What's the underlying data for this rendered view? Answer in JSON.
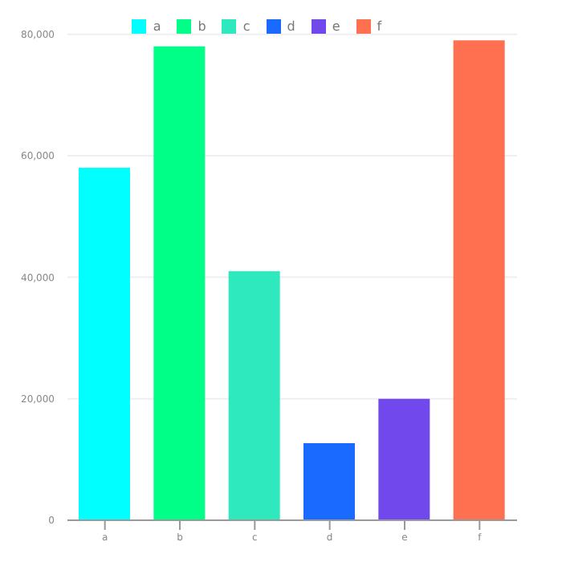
{
  "chart_data": {
    "type": "bar",
    "categories": [
      "a",
      "b",
      "c",
      "d",
      "e",
      "f"
    ],
    "stacked": true,
    "series": [
      {
        "name": "a",
        "color": "#00ffff",
        "values": [
          58000,
          null,
          null,
          null,
          null,
          null
        ]
      },
      {
        "name": "b",
        "color": "#00ff87",
        "values": [
          null,
          78000,
          null,
          null,
          null,
          null
        ]
      },
      {
        "name": "c",
        "color": "#2ee8be",
        "values": [
          null,
          null,
          41000,
          null,
          null,
          null
        ]
      },
      {
        "name": "d",
        "color": "#1a6aff",
        "values": [
          null,
          null,
          null,
          12700,
          null,
          null
        ]
      },
      {
        "name": "e",
        "color": "#7148ec",
        "values": [
          null,
          null,
          null,
          null,
          20000,
          null
        ]
      },
      {
        "name": "f",
        "color": "#ff7050",
        "values": [
          null,
          null,
          null,
          null,
          null,
          79000
        ]
      }
    ],
    "ylim": [
      0,
      80000
    ],
    "yticks": [
      {
        "value": 0,
        "label": "0"
      },
      {
        "value": 20000,
        "label": "20,000"
      },
      {
        "value": 40000,
        "label": "40,000"
      },
      {
        "value": 60000,
        "label": "60,000"
      },
      {
        "value": 80000,
        "label": "80,000"
      }
    ],
    "grid": "y",
    "legend": "top"
  }
}
